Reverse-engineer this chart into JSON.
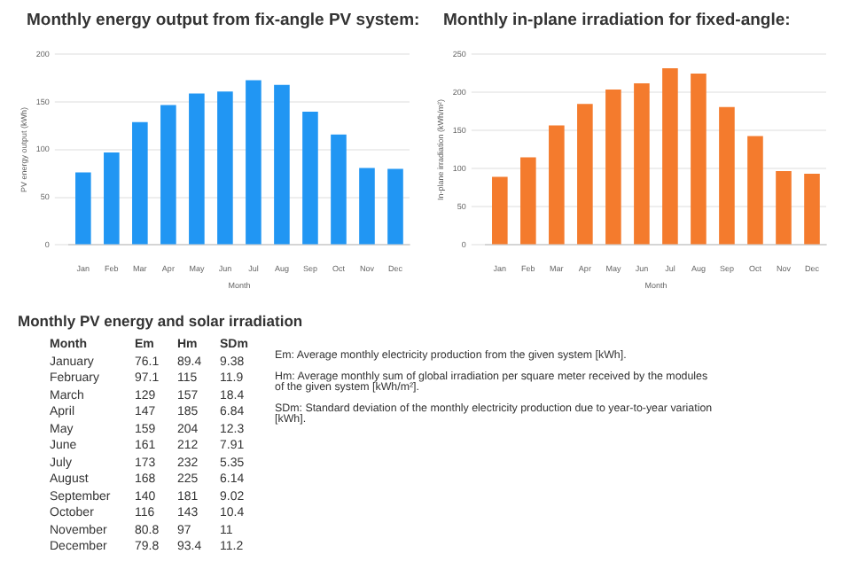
{
  "chart_data": [
    {
      "type": "bar",
      "title": "Monthly energy output from fix-angle PV system:",
      "xlabel": "Month",
      "ylabel": "PV energy output (kWh)",
      "categories": [
        "Jan",
        "Feb",
        "Mar",
        "Apr",
        "May",
        "Jun",
        "Jul",
        "Aug",
        "Sep",
        "Oct",
        "Nov",
        "Dec"
      ],
      "series": [
        {
          "color": "#2196f3",
          "values": [
            76.1,
            97.1,
            129,
            147,
            159,
            161,
            173,
            168,
            140,
            116,
            80.8,
            79.8
          ]
        }
      ],
      "ylim": [
        0,
        200
      ],
      "yticks": [
        0,
        50,
        100,
        150,
        200
      ],
      "grid": "y",
      "legend": false
    },
    {
      "type": "bar",
      "title": "Monthly in-plane irradiation for fixed-angle:",
      "xlabel": "Month",
      "ylabel": "In-plane irradiation (kWh/m²)",
      "categories": [
        "Jan",
        "Feb",
        "Mar",
        "Apr",
        "May",
        "Jun",
        "Jul",
        "Aug",
        "Sep",
        "Oct",
        "Nov",
        "Dec"
      ],
      "series": [
        {
          "color": "#f47b2d",
          "values": [
            89.4,
            115,
            157,
            185,
            204,
            212,
            232,
            225,
            181,
            143,
            97,
            93.4
          ]
        }
      ],
      "ylim": [
        0,
        250
      ],
      "yticks": [
        0,
        50,
        100,
        150,
        200,
        250
      ],
      "grid": "y",
      "legend": false
    },
    {
      "type": "other",
      "title": "Monthly PV energy and solar irradiation",
      "xlabel": "Month",
      "categories": [
        "January",
        "February",
        "March",
        "April",
        "May",
        "June",
        "July",
        "August",
        "September",
        "October",
        "November",
        "December"
      ],
      "series": [
        {
          "name": "Em",
          "values": [
            76.1,
            97.1,
            129,
            147,
            159,
            161,
            173,
            168,
            140,
            116,
            80.8,
            79.8
          ]
        },
        {
          "name": "Hm",
          "values": [
            89.4,
            115,
            157,
            185,
            204,
            212,
            232,
            225,
            181,
            143,
            97,
            93.4
          ]
        },
        {
          "name": "SDm",
          "values": [
            9.38,
            11.9,
            18.4,
            6.84,
            12.3,
            7.91,
            5.35,
            6.14,
            9.02,
            10.4,
            11,
            11.2
          ]
        }
      ],
      "data_labels": true,
      "annotations": [
        "Em: Average monthly electricity production from the given system [kWh].",
        "Hm: Average monthly sum of global irradiation per square meter received by the modules of the given system [kWh/m²].",
        "SDm: Standard deviation of the monthly electricity production due to year-to-year variation [kWh]."
      ]
    }
  ]
}
